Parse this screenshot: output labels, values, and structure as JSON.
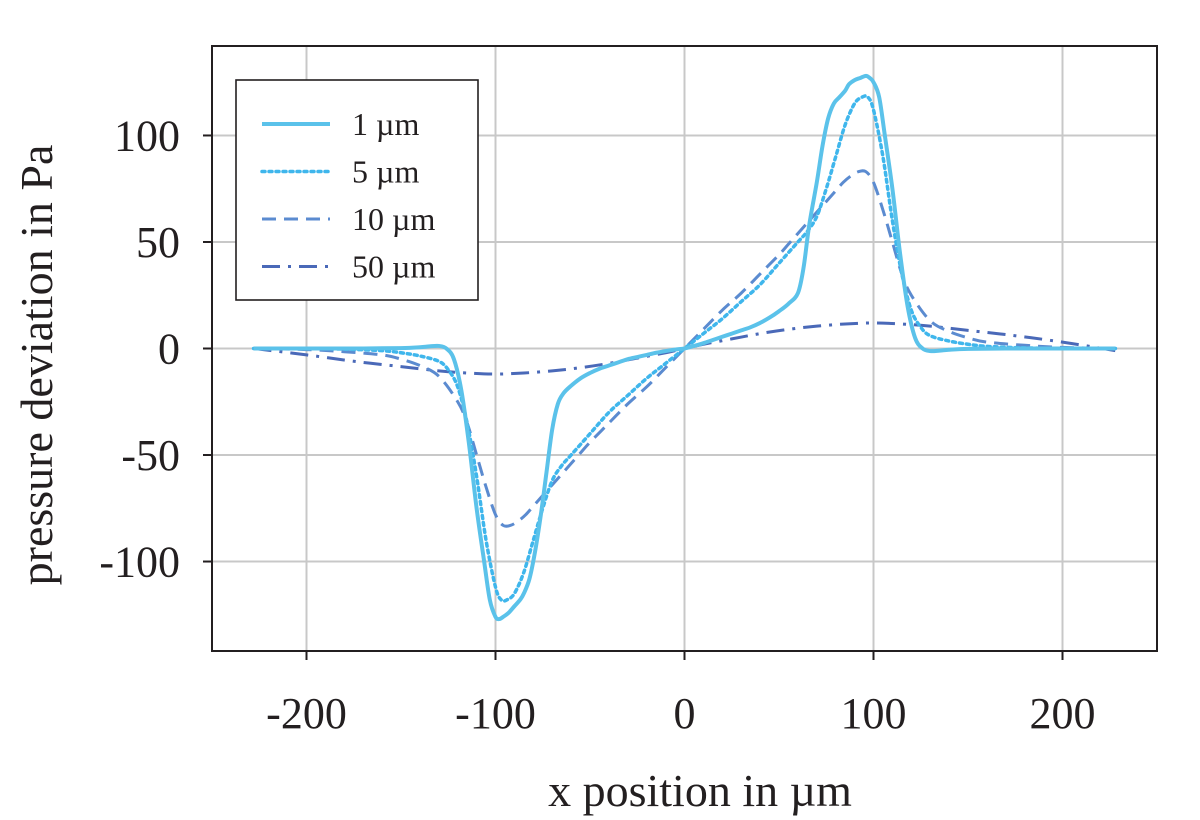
{
  "chart_data": {
    "type": "line",
    "title": "",
    "xlabel": "x position in µm",
    "ylabel": "pressure deviation in Pa",
    "xlim": [
      -250,
      250
    ],
    "ylim": [
      -142,
      142
    ],
    "xticks": [
      -200,
      -100,
      0,
      100,
      200
    ],
    "yticks": [
      100,
      50,
      0,
      -50,
      -100
    ],
    "xtick_labels": [
      "-200",
      "-100",
      "0",
      "100",
      "200"
    ],
    "ytick_labels": [
      "100",
      "50",
      "0",
      "-50",
      "-100"
    ],
    "grid": true,
    "legend_position": "top-left",
    "series": [
      {
        "name": "1 µm",
        "style": "solid",
        "color": "#5bc2ea",
        "x": [
          -228,
          -200,
          -170,
          -150,
          -140,
          -135,
          -130,
          -126,
          -122,
          -118,
          -114,
          -110,
          -106,
          -103,
          -100,
          -98,
          -96,
          -93,
          -90,
          -87,
          -85,
          -82,
          -79,
          -76,
          -73,
          -70,
          -67,
          -64,
          -60,
          -55,
          -50,
          -45,
          -40,
          -35,
          -30,
          -25,
          -20,
          -15,
          -10,
          -5,
          0,
          5,
          10,
          15,
          20,
          25,
          30,
          35,
          40,
          45,
          50,
          55,
          60,
          63,
          66,
          70,
          73,
          76,
          79,
          82,
          85,
          87,
          90,
          93,
          96,
          98,
          100,
          103,
          106,
          110,
          114,
          118,
          122,
          126,
          130,
          135,
          140,
          150,
          170,
          200,
          228
        ],
        "y": [
          0,
          0,
          0,
          0.2,
          0.6,
          1,
          1.2,
          0,
          -5,
          -20,
          -45,
          -75,
          -100,
          -118,
          -126,
          -127,
          -126,
          -124,
          -121,
          -118,
          -115,
          -108,
          -95,
          -78,
          -58,
          -38,
          -26,
          -21,
          -17.5,
          -14,
          -11.5,
          -9.5,
          -8,
          -6.5,
          -5,
          -4,
          -3,
          -2,
          -1.2,
          -0.5,
          0,
          1.2,
          2.5,
          4,
          5.5,
          7,
          8.5,
          10,
          12,
          14.5,
          17.5,
          21,
          26,
          38,
          58,
          78,
          95,
          108,
          115,
          118,
          121,
          124,
          126,
          127,
          128,
          127,
          125,
          118,
          100,
          75,
          45,
          20,
          5,
          0,
          -1.2,
          -1,
          -0.6,
          -0.2,
          0,
          0,
          0
        ]
      },
      {
        "name": "5 µm",
        "style": "dotted",
        "color": "#3fb6ec",
        "x": [
          -228,
          -200,
          -180,
          -160,
          -150,
          -140,
          -130,
          -125,
          -120,
          -115,
          -110,
          -105,
          -100,
          -97,
          -94,
          -90,
          -85,
          -80,
          -75,
          -70,
          -65,
          -60,
          -50,
          -40,
          -30,
          -20,
          -10,
          0,
          10,
          20,
          30,
          40,
          50,
          60,
          65,
          70,
          75,
          80,
          85,
          90,
          94,
          97,
          100,
          105,
          110,
          115,
          120,
          125,
          130,
          140,
          150,
          160,
          180,
          200,
          228
        ],
        "y": [
          0,
          0,
          -0.3,
          -1,
          -2,
          -3.5,
          -6,
          -10,
          -18,
          -35,
          -60,
          -90,
          -112,
          -118,
          -118,
          -115,
          -105,
          -90,
          -75,
          -62,
          -55,
          -50,
          -40,
          -30,
          -22,
          -14,
          -7,
          0,
          7,
          14,
          22,
          30,
          40,
          50,
          55,
          62,
          75,
          90,
          105,
          115,
          118,
          118,
          112,
          90,
          60,
          35,
          18,
          10,
          6,
          3.5,
          2,
          1,
          0.3,
          0,
          0
        ]
      },
      {
        "name": "10 µm",
        "style": "dashed",
        "color": "#5b8bd0",
        "x": [
          -228,
          -200,
          -180,
          -160,
          -150,
          -140,
          -130,
          -120,
          -115,
          -110,
          -105,
          -100,
          -96,
          -92,
          -88,
          -84,
          -80,
          -75,
          -70,
          -65,
          -60,
          -55,
          -50,
          -40,
          -30,
          -20,
          -10,
          0,
          10,
          20,
          30,
          40,
          50,
          55,
          60,
          65,
          70,
          75,
          80,
          84,
          88,
          92,
          96,
          100,
          105,
          110,
          115,
          120,
          130,
          140,
          150,
          160,
          180,
          200,
          228
        ],
        "y": [
          0,
          -0.5,
          -1.5,
          -3,
          -5,
          -8,
          -13,
          -25,
          -35,
          -50,
          -65,
          -78,
          -83,
          -83,
          -81,
          -78,
          -74,
          -69,
          -64,
          -59,
          -54,
          -49,
          -44,
          -35,
          -26,
          -18,
          -9,
          0,
          9,
          18,
          26,
          35,
          44,
          49,
          54,
          59,
          64,
          69,
          74,
          78,
          81,
          83,
          83,
          78,
          65,
          50,
          35,
          25,
          13,
          8,
          5,
          3,
          1.5,
          0.5,
          0
        ]
      },
      {
        "name": "50 µm",
        "style": "dashdot",
        "color": "#4a69b8",
        "x": [
          -228,
          -200,
          -175,
          -150,
          -130,
          -115,
          -100,
          -85,
          -70,
          -55,
          -40,
          -25,
          -10,
          0,
          10,
          25,
          40,
          55,
          70,
          85,
          100,
          115,
          130,
          150,
          175,
          200,
          228
        ],
        "y": [
          0,
          -3,
          -6,
          -8.5,
          -10.5,
          -11.5,
          -12,
          -11.5,
          -10.5,
          -9,
          -7,
          -4.5,
          -2,
          0,
          2,
          4.5,
          7,
          9,
          10.5,
          11.5,
          12,
          11.5,
          10.5,
          8.5,
          6,
          3,
          -1
        ]
      }
    ]
  }
}
